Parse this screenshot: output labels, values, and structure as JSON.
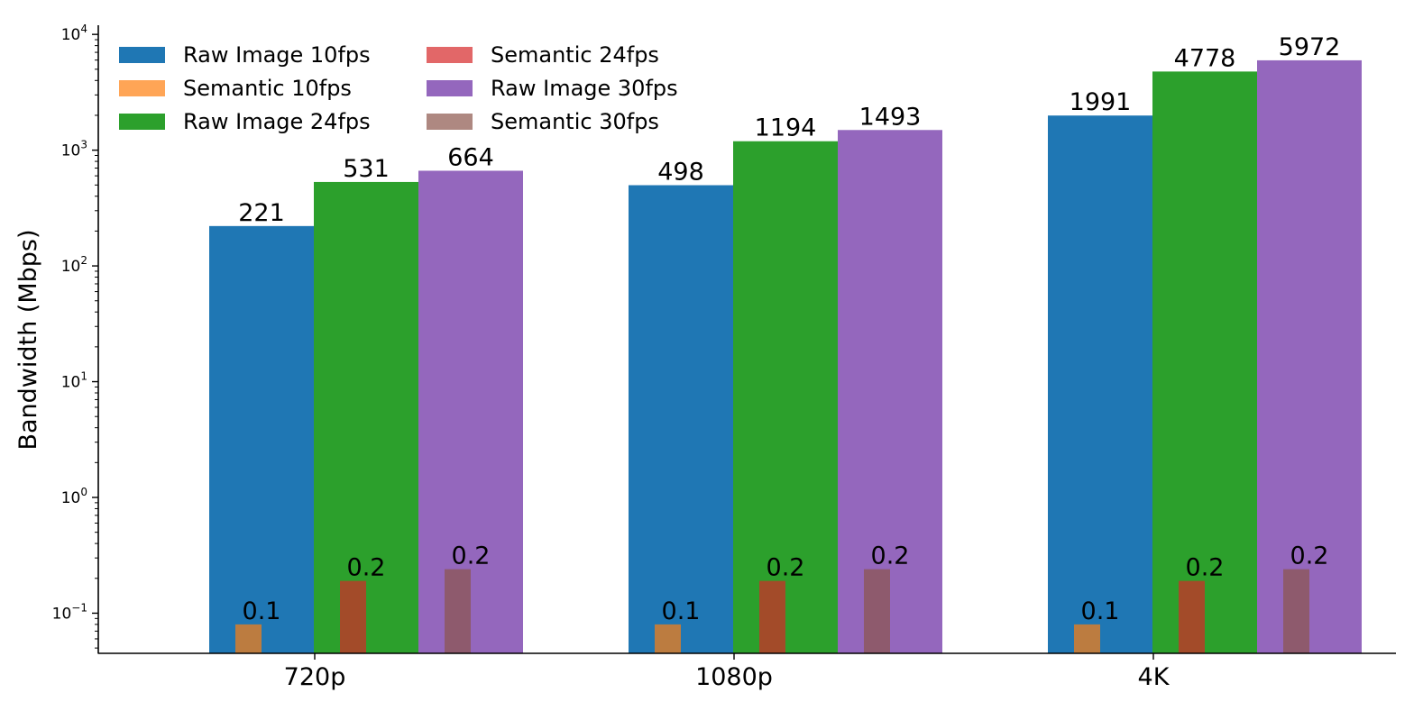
{
  "chart_data": {
    "type": "bar",
    "title": "",
    "xlabel": "",
    "ylabel": "Bandwidth (Mbps)",
    "yscale": "log",
    "ylim": [
      0.045,
      12000
    ],
    "ytick_labels": [
      {
        "mantissa": "10",
        "exp": "−1",
        "value": 0.1
      },
      {
        "mantissa": "10",
        "exp": "0",
        "value": 1
      },
      {
        "mantissa": "10",
        "exp": "1",
        "value": 10
      },
      {
        "mantissa": "10",
        "exp": "2",
        "value": 100
      },
      {
        "mantissa": "10",
        "exp": "3",
        "value": 1000
      },
      {
        "mantissa": "10",
        "exp": "4",
        "value": 10000
      }
    ],
    "grid": false,
    "legend_position": "top-left",
    "legend_columns": 2,
    "categories": [
      "720p",
      "1080p",
      "4K"
    ],
    "series": [
      {
        "name": "Raw Image 10fps",
        "color": "#1f77b4",
        "alpha": 1.0,
        "values": [
          221,
          498,
          1991
        ],
        "labels": [
          "221",
          "498",
          "1991"
        ]
      },
      {
        "name": "Semantic 10fps",
        "color": "#ff7f0e",
        "alpha": 0.7,
        "values": [
          0.08,
          0.08,
          0.08
        ],
        "labels": [
          "0.1",
          "0.1",
          "0.1"
        ]
      },
      {
        "name": "Raw Image 24fps",
        "color": "#2ca02c",
        "alpha": 1.0,
        "values": [
          531,
          1194,
          4778
        ],
        "labels": [
          "531",
          "1194",
          "4778"
        ]
      },
      {
        "name": "Semantic 24fps",
        "color": "#d62728",
        "alpha": 0.7,
        "values": [
          0.19,
          0.19,
          0.19
        ],
        "labels": [
          "0.2",
          "0.2",
          "0.2"
        ]
      },
      {
        "name": "Raw Image 30fps",
        "color": "#9467bd",
        "alpha": 1.0,
        "values": [
          664,
          1493,
          5972
        ],
        "labels": [
          "664",
          "1493",
          "5972"
        ]
      },
      {
        "name": "Semantic 30fps",
        "color": "#8c564b",
        "alpha": 0.7,
        "values": [
          0.24,
          0.24,
          0.24
        ],
        "labels": [
          "0.2",
          "0.2",
          "0.2"
        ]
      }
    ]
  }
}
